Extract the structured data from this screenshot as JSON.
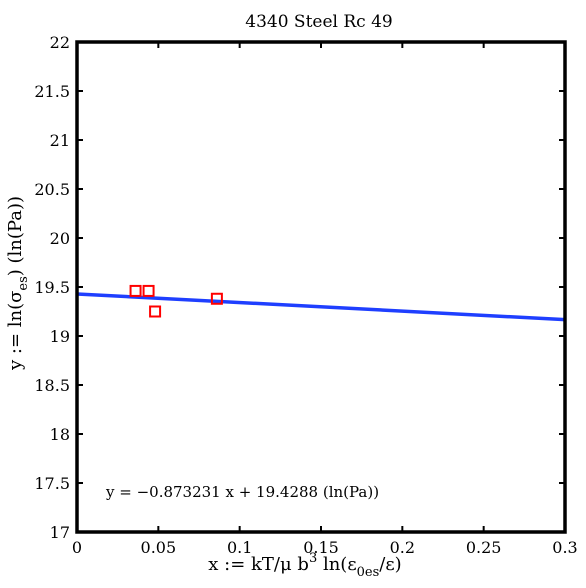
{
  "chart_data": {
    "type": "scatter",
    "title": "4340 Steel Rc 49",
    "xlabel": {
      "main": "x := kT/μ b",
      "sup": "3",
      "mid": " ln(ε",
      "sub": "0es",
      "end": "/ε)"
    },
    "ylabel": {
      "main": "y := ln(σ",
      "sub": "es",
      "end": ") (ln(Pa))"
    },
    "xlim": [
      0,
      0.3
    ],
    "ylim": [
      17,
      22
    ],
    "xticks": [
      0,
      0.05,
      0.1,
      0.15,
      0.2,
      0.25,
      0.3
    ],
    "xtick_labels": [
      "0",
      "0.05",
      "0.1",
      "0.15",
      "0.2",
      "0.25",
      "0.3"
    ],
    "yticks": [
      17,
      17.5,
      18,
      18.5,
      19,
      19.5,
      20,
      20.5,
      21,
      21.5,
      22
    ],
    "ytick_labels": [
      "17",
      "17.5",
      "18",
      "18.5",
      "19",
      "19.5",
      "20",
      "20.5",
      "21",
      "21.5",
      "22"
    ],
    "grid": false,
    "points": [
      {
        "x": 0.036,
        "y": 19.46
      },
      {
        "x": 0.044,
        "y": 19.46
      },
      {
        "x": 0.048,
        "y": 19.25
      },
      {
        "x": 0.086,
        "y": 19.38
      }
    ],
    "fit": {
      "slope": -0.873231,
      "intercept": 19.4288
    },
    "annotation": "y = −0.873231 x + 19.4288 (ln(Pa))",
    "colors": {
      "points": "#ff0000",
      "fit": "#1f3fff"
    }
  }
}
